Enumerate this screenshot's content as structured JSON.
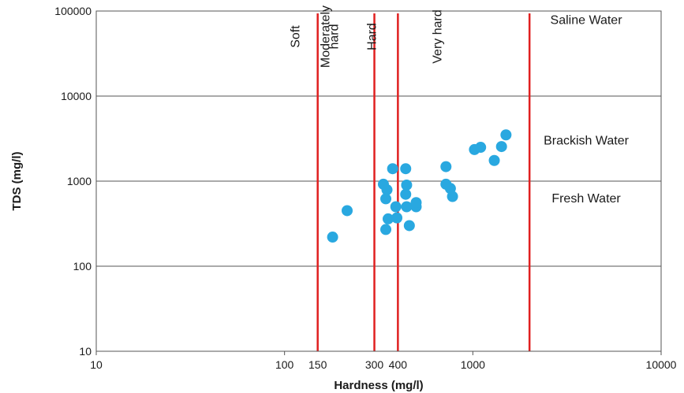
{
  "chart_data": {
    "type": "scatter",
    "xlabel": "Hardness (mg/l)",
    "ylabel": "TDS (mg/l)",
    "x_scale": "log",
    "y_scale": "log",
    "xlim": [
      10,
      10000
    ],
    "ylim": [
      10,
      100000
    ],
    "x_ticks": [
      "10",
      "100",
      "1000",
      "10000"
    ],
    "y_ticks": [
      "10",
      "100",
      "1000",
      "10000",
      "100000"
    ],
    "grid": "horizontal",
    "point_color": "#29a8e0",
    "line_color": "#e02020",
    "vertical_lines": [
      {
        "x": 150,
        "label": "150"
      },
      {
        "x": 300,
        "label": "300"
      },
      {
        "x": 400,
        "label": "400"
      },
      {
        "x": 2000,
        "label": ""
      }
    ],
    "hardness_labels": [
      {
        "text": "Soft",
        "x": 120,
        "y": 50000
      },
      {
        "text": "Moderately",
        "x": 173,
        "y": 50000
      },
      {
        "text": "hard",
        "x": 192,
        "y": 50000
      },
      {
        "text": "Hard",
        "x": 305,
        "y": 50000
      },
      {
        "text": "Very hard",
        "x": 680,
        "y": 50000
      }
    ],
    "zone_labels": [
      {
        "text": "Saline Water",
        "x": 4000,
        "y": 70000
      },
      {
        "text": "Brackish Water",
        "x": 4000,
        "y": 2700
      },
      {
        "text": "Fresh Water",
        "x": 4000,
        "y": 560
      }
    ],
    "points": [
      {
        "x": 180,
        "y": 220
      },
      {
        "x": 215,
        "y": 450
      },
      {
        "x": 335,
        "y": 920
      },
      {
        "x": 345,
        "y": 620
      },
      {
        "x": 350,
        "y": 790
      },
      {
        "x": 345,
        "y": 270
      },
      {
        "x": 355,
        "y": 360
      },
      {
        "x": 375,
        "y": 1400
      },
      {
        "x": 390,
        "y": 500
      },
      {
        "x": 395,
        "y": 370
      },
      {
        "x": 440,
        "y": 1400
      },
      {
        "x": 440,
        "y": 700
      },
      {
        "x": 445,
        "y": 900
      },
      {
        "x": 445,
        "y": 500
      },
      {
        "x": 460,
        "y": 300
      },
      {
        "x": 500,
        "y": 500
      },
      {
        "x": 500,
        "y": 560
      },
      {
        "x": 720,
        "y": 1480
      },
      {
        "x": 720,
        "y": 920
      },
      {
        "x": 760,
        "y": 820
      },
      {
        "x": 780,
        "y": 660
      },
      {
        "x": 1020,
        "y": 2350
      },
      {
        "x": 1100,
        "y": 2500
      },
      {
        "x": 1300,
        "y": 1750
      },
      {
        "x": 1420,
        "y": 2550
      },
      {
        "x": 1500,
        "y": 3500
      }
    ]
  }
}
